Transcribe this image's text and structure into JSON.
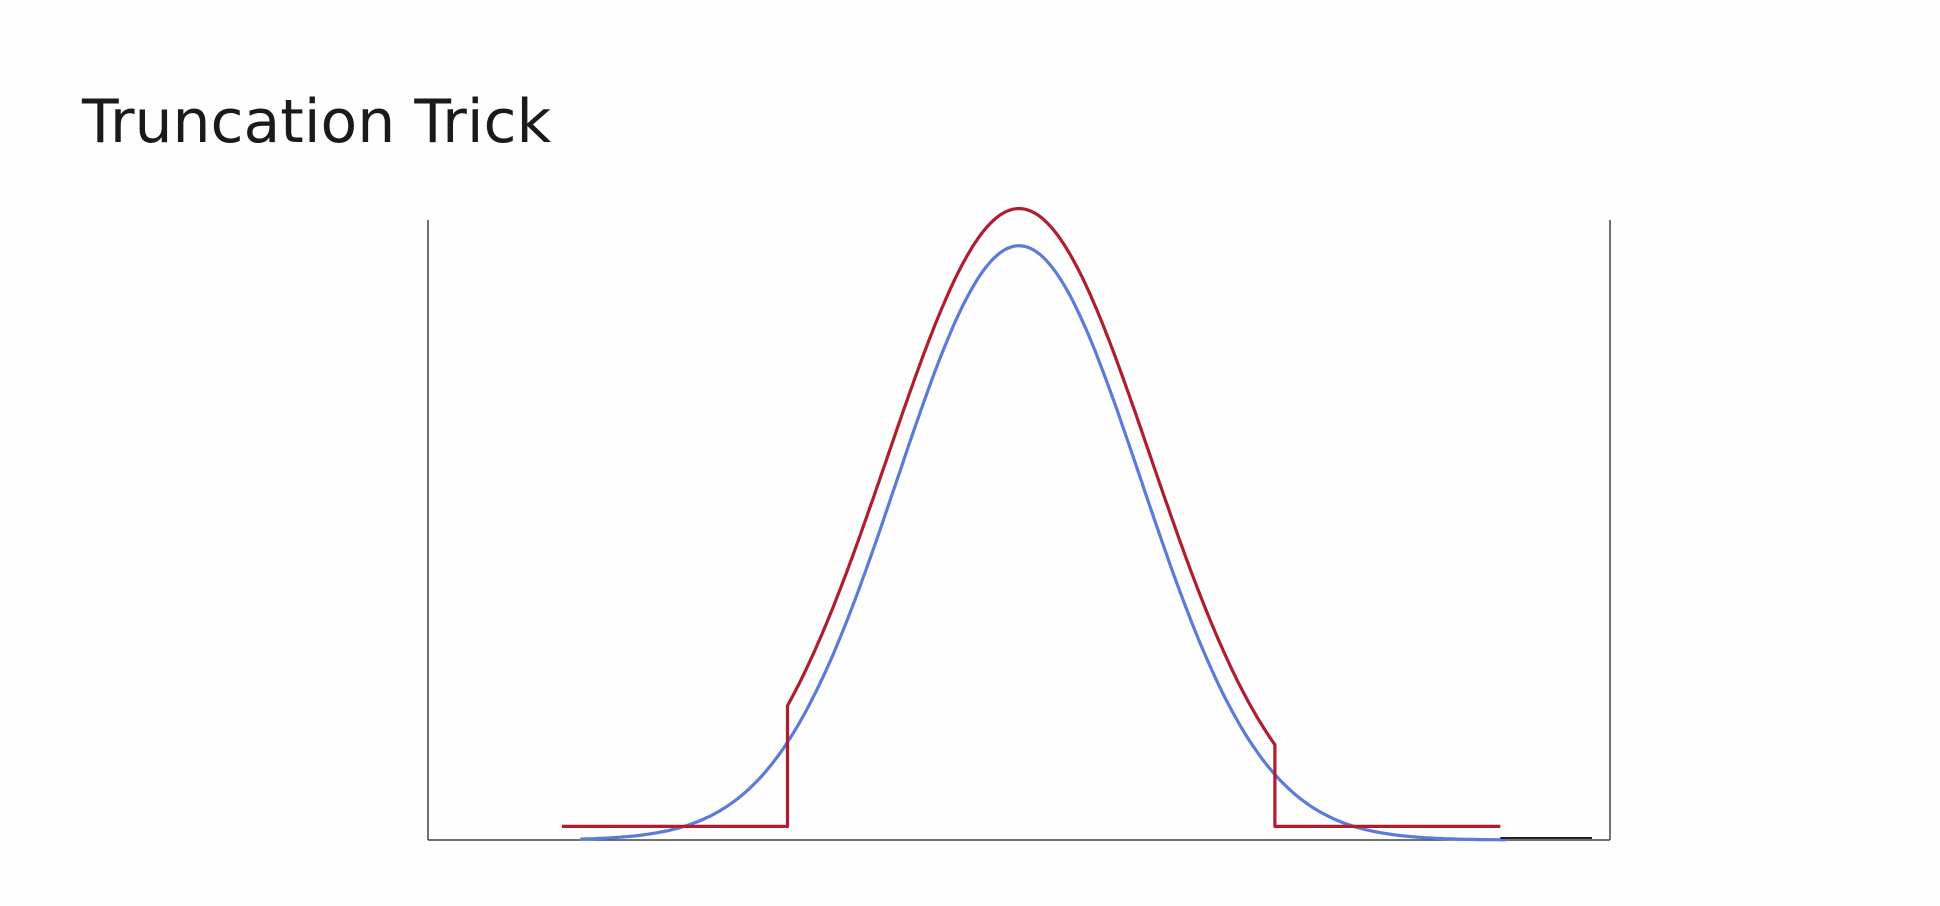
{
  "slide": {
    "title": "Truncation Trick"
  },
  "chart_data": {
    "type": "line",
    "title": "",
    "xlabel": "",
    "ylabel": "",
    "xlim": [
      -4.85,
      4.85
    ],
    "ylim": [
      0,
      1.05
    ],
    "grid": false,
    "legend": "none",
    "series": [
      {
        "key": "normal",
        "color": "#5b7bd8",
        "mean": 0,
        "std": 1,
        "x_start": -3.6,
        "x_end": 4.0,
        "peak": 0.96,
        "baseline": 0.0
      },
      {
        "key": "truncated",
        "color": "#b01c30",
        "mean": 0,
        "std": 1.08,
        "truncate_low": -1.9,
        "truncate_high": 2.1,
        "x_start": -3.75,
        "x_end": 3.95,
        "peak": 1.02,
        "outside_level": 0.022
      },
      {
        "key": "baseline-tail",
        "color": "#222222",
        "x_start": 3.95,
        "x_end": 5.75,
        "value": 0.0
      }
    ]
  }
}
